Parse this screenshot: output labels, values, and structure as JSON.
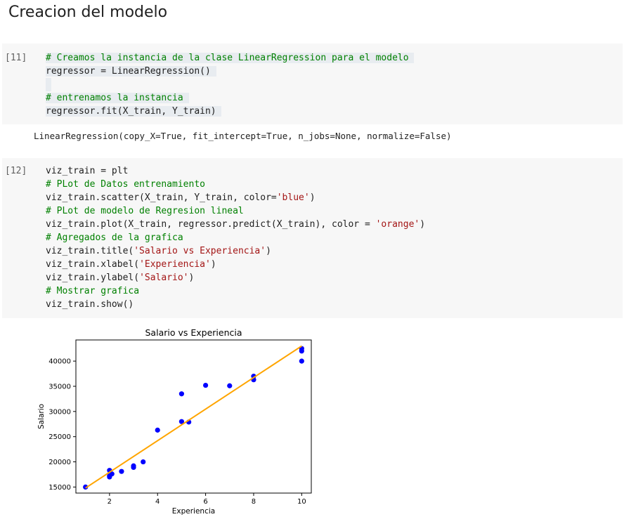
{
  "section_title": "Creacion del modelo",
  "cell1": {
    "prompt": "[11]",
    "lines": [
      {
        "type": "comment",
        "text": "# Creamos la instancia de la clase LinearRegression para el modelo"
      },
      {
        "type": "code",
        "text": "regressor = LinearRegression()"
      },
      {
        "type": "blank",
        "text": ""
      },
      {
        "type": "comment",
        "text": "# entrenamos la instancia"
      },
      {
        "type": "code",
        "text": "regressor.fit(X_train, Y_train)"
      }
    ]
  },
  "cell1_output": "LinearRegression(copy_X=True, fit_intercept=True, n_jobs=None, normalize=False)",
  "cell2": {
    "prompt": "[12]",
    "lines": [
      {
        "parts": [
          {
            "c": "code",
            "t": "viz_train = plt"
          }
        ]
      },
      {
        "parts": [
          {
            "c": "comment",
            "t": "# PLot de Datos entrenamiento"
          }
        ]
      },
      {
        "parts": [
          {
            "c": "code",
            "t": "viz_train.scatter(X_train, Y_train, color="
          },
          {
            "c": "str",
            "t": "'blue'"
          },
          {
            "c": "code",
            "t": ")"
          }
        ]
      },
      {
        "parts": [
          {
            "c": "comment",
            "t": "# PLot de modelo de Regresion lineal"
          }
        ]
      },
      {
        "parts": [
          {
            "c": "code",
            "t": "viz_train.plot(X_train, regressor.predict(X_train), color = "
          },
          {
            "c": "str",
            "t": "'orange'"
          },
          {
            "c": "code",
            "t": ")"
          }
        ]
      },
      {
        "parts": [
          {
            "c": "comment",
            "t": "# Agregados de la grafica"
          }
        ]
      },
      {
        "parts": [
          {
            "c": "code",
            "t": "viz_train.title("
          },
          {
            "c": "str",
            "t": "'Salario vs Experiencia'"
          },
          {
            "c": "code",
            "t": ")"
          }
        ]
      },
      {
        "parts": [
          {
            "c": "code",
            "t": "viz_train.xlabel("
          },
          {
            "c": "str",
            "t": "'Experiencia'"
          },
          {
            "c": "code",
            "t": ")"
          }
        ]
      },
      {
        "parts": [
          {
            "c": "code",
            "t": "viz_train.ylabel("
          },
          {
            "c": "str",
            "t": "'Salario'"
          },
          {
            "c": "code",
            "t": ")"
          }
        ]
      },
      {
        "parts": [
          {
            "c": "comment",
            "t": "# Mostrar grafica"
          }
        ]
      },
      {
        "parts": [
          {
            "c": "code",
            "t": "viz_train.show()"
          }
        ]
      }
    ]
  },
  "chart_data": {
    "type": "scatter",
    "title": "Salario vs Experiencia",
    "xlabel": "Experiencia",
    "ylabel": "Salario",
    "xlim": [
      0.6,
      10.4
    ],
    "ylim": [
      13800,
      44200
    ],
    "xticks": [
      2,
      4,
      6,
      8,
      10
    ],
    "yticks": [
      15000,
      20000,
      25000,
      30000,
      35000,
      40000
    ],
    "grid": false,
    "series": [
      {
        "type": "scatter",
        "color": "#0000ff",
        "x": [
          1,
          2,
          2,
          2,
          2.1,
          2.5,
          3,
          3,
          3.4,
          4,
          5,
          5,
          5.3,
          6,
          7,
          8,
          8,
          10,
          10,
          10
        ],
        "y": [
          15000,
          18300,
          17200,
          17000,
          17600,
          18100,
          19200,
          18900,
          20000,
          26300,
          33500,
          28000,
          27900,
          35200,
          35100,
          37000,
          36300,
          42500,
          42000,
          40000
        ]
      },
      {
        "type": "line",
        "color": "#ffa500",
        "x": [
          1,
          10
        ],
        "y": [
          14800,
          43000
        ]
      }
    ]
  }
}
